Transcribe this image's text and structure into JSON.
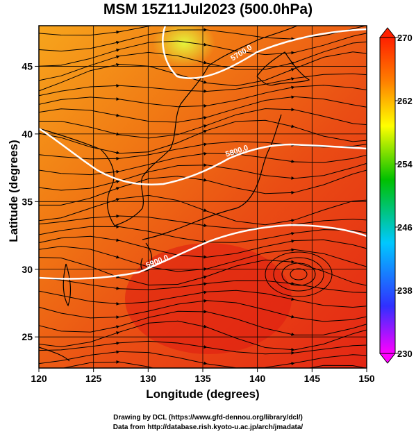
{
  "title": "MSM 15Z11Jul2023 (500.0hPa)",
  "x_axis": {
    "label": "Longitude (degrees)",
    "ticks": [
      "120",
      "125",
      "130",
      "135",
      "140",
      "145",
      "150"
    ]
  },
  "y_axis": {
    "label": "Latitude  (degrees)",
    "ticks": [
      "25",
      "30",
      "35",
      "40",
      "45"
    ]
  },
  "colorbar": {
    "ticks": [
      "270",
      "262",
      "254",
      "246",
      "238",
      "230"
    ],
    "min": 230,
    "max": 270
  },
  "contour_labels": [
    "5700.0",
    "5800.0",
    "5900.0"
  ],
  "credits": {
    "line1": "Drawing by DCL (https://www.gfd-dennou.org/library/dcl/)",
    "line2": "Data from http://database.rish.kyoto-u.ac.jp/arch/jmadata/"
  },
  "map_data": {
    "lon_range": [
      120,
      150
    ],
    "lat_range": [
      22.7,
      48
    ],
    "variable": "temperature (K) shaded, streamlines, geopotential height contours",
    "colors": {
      "cold": "#ff00ff",
      "cool": "#0000ff",
      "mid": "#00c000",
      "warm": "#ffff00",
      "hot": "#ff0000"
    }
  }
}
